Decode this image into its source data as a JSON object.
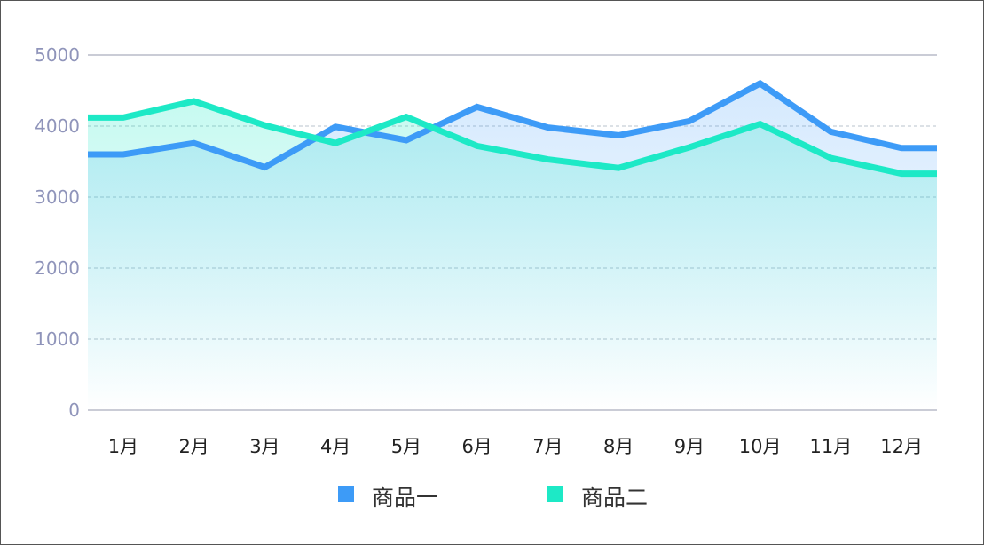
{
  "chart_data": {
    "type": "line",
    "title": "",
    "xlabel": "",
    "ylabel": "",
    "categories": [
      "1月",
      "2月",
      "3月",
      "4月",
      "5月",
      "6月",
      "7月",
      "8月",
      "9月",
      "10月",
      "11月",
      "12月"
    ],
    "ylim": [
      0,
      5000
    ],
    "yticks": [
      "0",
      "1000",
      "2000",
      "3000",
      "4000",
      "5000"
    ],
    "grid": "horizontal dashed",
    "legend_position": "bottom-center",
    "area_fill": true,
    "series": [
      {
        "name": "商品一",
        "color": "#3d9bf7",
        "values": [
          3600,
          3760,
          3420,
          3990,
          3800,
          4270,
          3980,
          3870,
          4070,
          4600,
          3920,
          3690
        ]
      },
      {
        "name": "商品二",
        "color": "#1de9c6",
        "values": [
          4120,
          4350,
          4010,
          3760,
          4130,
          3720,
          3530,
          3410,
          3700,
          4030,
          3550,
          3330
        ]
      }
    ]
  }
}
